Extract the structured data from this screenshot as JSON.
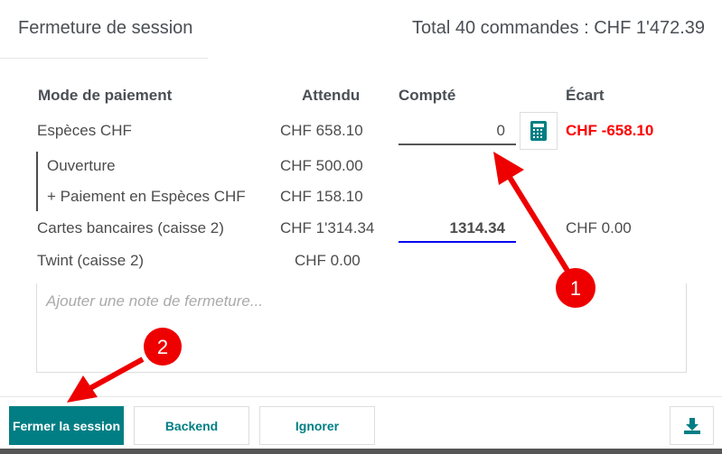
{
  "header": {
    "title": "Fermeture de session",
    "total": "Total 40 commandes : CHF 1'472.39"
  },
  "table": {
    "columns": [
      "Mode de paiement",
      "Attendu",
      "Compté",
      "Écart"
    ],
    "rows": [
      {
        "method": "Espèces CHF",
        "expected": "CHF 658.10",
        "counted": "0",
        "difference": "CHF -658.10"
      },
      {
        "method": "Ouverture",
        "expected": "CHF 500.00"
      },
      {
        "method": "+ Paiement en Espèces CHF",
        "expected": "CHF 158.10"
      },
      {
        "method": "Cartes bancaires (caisse 2)",
        "expected": "CHF 1'314.34",
        "counted": "1314.34",
        "difference": "CHF 0.00"
      },
      {
        "method": "Twint (caisse 2)",
        "expected": "CHF 0.00"
      }
    ]
  },
  "note": {
    "placeholder": "Ajouter une note de fermeture..."
  },
  "footer": {
    "close": "Fermer la session",
    "backend": "Backend",
    "ignore": "Ignorer"
  },
  "annotations": {
    "one": "1",
    "two": "2"
  },
  "colors": {
    "primary": "#017e84",
    "negative": "#ff0000",
    "annotation": "#ee0000"
  }
}
